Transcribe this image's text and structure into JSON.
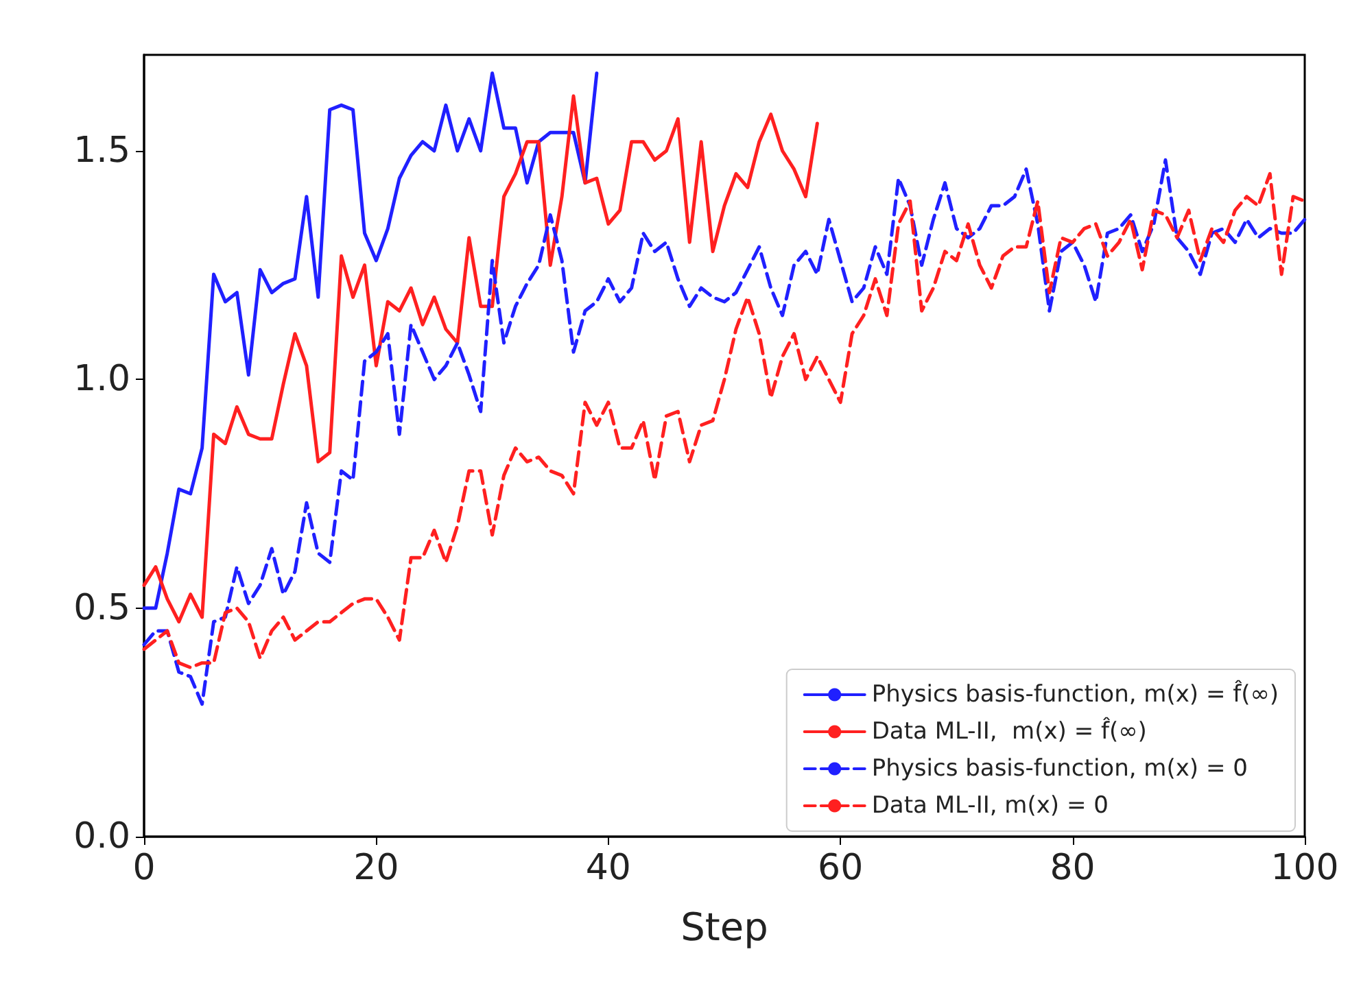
{
  "chart_data": {
    "type": "line",
    "xlabel": "Step",
    "x": [
      0,
      1,
      2,
      3,
      4,
      5,
      6,
      7,
      8,
      9,
      10,
      11,
      12,
      13,
      14,
      15,
      16,
      17,
      18,
      19,
      20,
      21,
      22,
      23,
      24,
      25,
      26,
      27,
      28,
      29,
      30,
      31,
      32,
      33,
      34,
      35,
      36,
      37,
      38,
      39,
      40,
      41,
      42,
      43,
      44,
      45,
      46,
      47,
      48,
      49,
      50,
      51,
      52,
      53,
      54,
      55,
      56,
      57,
      58,
      59,
      60,
      61,
      62,
      63,
      64,
      65,
      66,
      67,
      68,
      69,
      70,
      71,
      72,
      73,
      74,
      75,
      76,
      77,
      78,
      79,
      80,
      81,
      82,
      83,
      84,
      85,
      86,
      87,
      88,
      89,
      90,
      91,
      92,
      93,
      94,
      95,
      96,
      97,
      98,
      99,
      100
    ],
    "series": [
      {
        "name": "Physics basis-function, m(x) = f̂(∞)",
        "color": "#2020ff",
        "line_style": "solid",
        "x": [
          0,
          1,
          2,
          3,
          4,
          5,
          6,
          7,
          8,
          9,
          10,
          11,
          12,
          13,
          14,
          15,
          16,
          17,
          18,
          19,
          20,
          21,
          22,
          23,
          24,
          25,
          26,
          27,
          28,
          29,
          30,
          31,
          32,
          33,
          34,
          35,
          36,
          37,
          38,
          39
        ],
        "values": [
          0.5,
          0.5,
          0.62,
          0.76,
          0.75,
          0.85,
          1.23,
          1.17,
          1.19,
          1.01,
          1.24,
          1.19,
          1.21,
          1.22,
          1.4,
          1.18,
          1.59,
          1.6,
          1.59,
          1.32,
          1.26,
          1.33,
          1.44,
          1.49,
          1.52,
          1.5,
          1.6,
          1.5,
          1.57,
          1.5,
          1.67,
          1.55,
          1.55,
          1.43,
          1.52,
          1.54,
          1.54,
          1.54,
          1.43,
          1.67
        ]
      },
      {
        "name": "Data ML-II,  m(x) = f̂(∞)",
        "color": "#ff2020",
        "line_style": "solid",
        "x": [
          0,
          1,
          2,
          3,
          4,
          5,
          6,
          7,
          8,
          9,
          10,
          11,
          12,
          13,
          14,
          15,
          16,
          17,
          18,
          19,
          20,
          21,
          22,
          23,
          24,
          25,
          26,
          27,
          28,
          29,
          30,
          31,
          32,
          33,
          34,
          35,
          36,
          37,
          38,
          39,
          40,
          41,
          42,
          43,
          44,
          45,
          46,
          47,
          48,
          49,
          50,
          51,
          52,
          53,
          54,
          55,
          56,
          57,
          58
        ],
        "values": [
          0.55,
          0.59,
          0.52,
          0.47,
          0.53,
          0.48,
          0.88,
          0.86,
          0.94,
          0.88,
          0.87,
          0.87,
          0.99,
          1.1,
          1.03,
          0.82,
          0.84,
          1.27,
          1.18,
          1.25,
          1.03,
          1.17,
          1.15,
          1.2,
          1.12,
          1.18,
          1.11,
          1.08,
          1.31,
          1.16,
          1.16,
          1.4,
          1.45,
          1.52,
          1.52,
          1.25,
          1.4,
          1.62,
          1.43,
          1.44,
          1.34,
          1.37,
          1.52,
          1.52,
          1.48,
          1.5,
          1.57,
          1.3,
          1.52,
          1.28,
          1.38,
          1.45,
          1.42,
          1.52,
          1.58,
          1.5,
          1.46,
          1.4,
          1.56
        ]
      },
      {
        "name": "Physics basis-function, m(x) = 0",
        "color": "#2020ff",
        "line_style": "dashed",
        "values": [
          0.42,
          0.45,
          0.45,
          0.36,
          0.35,
          0.29,
          0.47,
          0.48,
          0.59,
          0.51,
          0.55,
          0.63,
          0.53,
          0.58,
          0.73,
          0.62,
          0.6,
          0.8,
          0.78,
          1.04,
          1.06,
          1.1,
          0.88,
          1.12,
          1.06,
          1.0,
          1.03,
          1.08,
          1.01,
          0.93,
          1.26,
          1.08,
          1.16,
          1.21,
          1.25,
          1.36,
          1.26,
          1.06,
          1.15,
          1.17,
          1.22,
          1.17,
          1.2,
          1.32,
          1.28,
          1.3,
          1.22,
          1.16,
          1.2,
          1.18,
          1.17,
          1.19,
          1.24,
          1.29,
          1.2,
          1.14,
          1.25,
          1.28,
          1.23,
          1.35,
          1.26,
          1.17,
          1.2,
          1.29,
          1.23,
          1.44,
          1.38,
          1.25,
          1.35,
          1.43,
          1.33,
          1.31,
          1.33,
          1.38,
          1.38,
          1.4,
          1.46,
          1.34,
          1.15,
          1.28,
          1.3,
          1.25,
          1.17,
          1.32,
          1.33,
          1.36,
          1.28,
          1.34,
          1.48,
          1.31,
          1.28,
          1.23,
          1.32,
          1.33,
          1.3,
          1.35,
          1.31,
          1.33,
          1.32,
          1.32,
          1.35
        ]
      },
      {
        "name": "Data ML-II, m(x) = 0",
        "color": "#ff2020",
        "line_style": "dashed",
        "values": [
          0.41,
          0.43,
          0.45,
          0.38,
          0.37,
          0.38,
          0.38,
          0.49,
          0.5,
          0.47,
          0.39,
          0.45,
          0.48,
          0.43,
          0.45,
          0.47,
          0.47,
          0.49,
          0.51,
          0.52,
          0.52,
          0.48,
          0.43,
          0.61,
          0.61,
          0.67,
          0.6,
          0.68,
          0.8,
          0.8,
          0.66,
          0.79,
          0.85,
          0.82,
          0.83,
          0.8,
          0.79,
          0.75,
          0.95,
          0.9,
          0.95,
          0.85,
          0.85,
          0.91,
          0.78,
          0.92,
          0.93,
          0.82,
          0.9,
          0.91,
          1.0,
          1.11,
          1.18,
          1.1,
          0.96,
          1.05,
          1.1,
          1.0,
          1.05,
          1.0,
          0.95,
          1.1,
          1.14,
          1.22,
          1.14,
          1.34,
          1.39,
          1.15,
          1.2,
          1.28,
          1.26,
          1.34,
          1.25,
          1.2,
          1.27,
          1.29,
          1.29,
          1.39,
          1.19,
          1.31,
          1.3,
          1.33,
          1.34,
          1.27,
          1.3,
          1.35,
          1.24,
          1.37,
          1.36,
          1.31,
          1.37,
          1.26,
          1.33,
          1.3,
          1.37,
          1.4,
          1.38,
          1.45,
          1.23,
          1.4,
          1.39
        ]
      }
    ],
    "xlim": [
      0,
      100
    ],
    "xticks": [
      0,
      20,
      40,
      60,
      80,
      100
    ],
    "ylim": [
      0,
      1.71
    ],
    "yticks": [
      {
        "value": 0,
        "label": "0.0"
      },
      {
        "value": 0.5,
        "label": "0.5"
      },
      {
        "value": 1,
        "label": "1.0"
      },
      {
        "value": 1.5,
        "label": "1.5"
      }
    ],
    "grid": false,
    "legend": "bottom right",
    "marker": "none"
  }
}
